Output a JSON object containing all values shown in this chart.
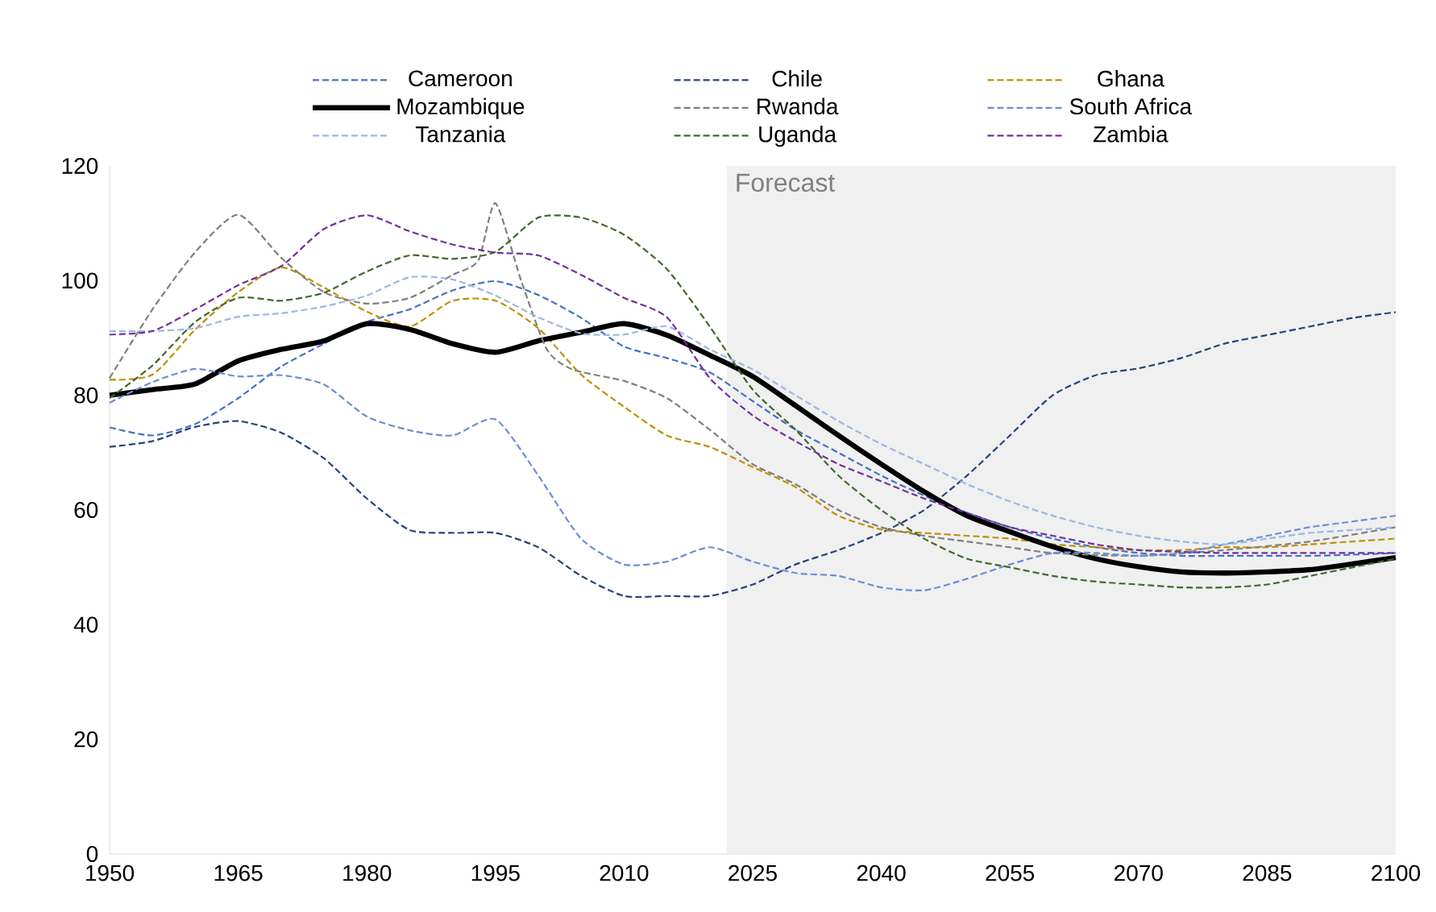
{
  "chart_data": {
    "type": "line",
    "x": [
      1950,
      1955,
      1960,
      1965,
      1970,
      1975,
      1980,
      1985,
      1990,
      1995,
      2000,
      2005,
      2010,
      2015,
      2020,
      2025,
      2030,
      2035,
      2040,
      2045,
      2050,
      2055,
      2060,
      2065,
      2070,
      2075,
      2080,
      2085,
      2090,
      2095,
      2100
    ],
    "series": [
      {
        "name": "Cameroon",
        "color": "#4472c4",
        "line_style": "dashed",
        "values": [
          74.4,
          73,
          75,
          79.5,
          85,
          89,
          92.8,
          95,
          98.3,
          99.9,
          97.5,
          93.5,
          88.5,
          86.5,
          84,
          79,
          74,
          70,
          66,
          62.5,
          59.5,
          57,
          55,
          53.5,
          52.5,
          52,
          52,
          52,
          52,
          52.2,
          52.5
        ]
      },
      {
        "name": "Chile",
        "color": "#264478",
        "line_style": "dashed",
        "values": [
          71,
          72,
          74.5,
          75.5,
          73.5,
          69,
          62,
          56.5,
          56,
          56,
          53.5,
          48.5,
          45,
          45,
          45,
          47,
          50.5,
          53,
          56,
          60,
          66,
          73,
          80,
          83.5,
          84.7,
          86.5,
          89,
          90.5,
          92,
          93.5,
          94.5
        ]
      },
      {
        "name": "Ghana",
        "color": "#bf9000",
        "line_style": "dashed",
        "values": [
          82.7,
          83.6,
          91.5,
          98,
          102.3,
          98.8,
          94.6,
          92,
          96.5,
          96.5,
          91.7,
          83.6,
          78,
          73,
          71,
          67.5,
          64,
          59,
          56.6,
          56,
          55.5,
          55,
          54,
          53.5,
          53,
          53,
          53.5,
          53.5,
          54,
          54.5,
          55
        ]
      },
      {
        "name": "Mozambique",
        "color": "#000000",
        "line_style": "solid",
        "values": [
          80,
          81,
          82,
          86,
          88,
          89.5,
          92.5,
          91.5,
          89,
          87.5,
          89.5,
          91,
          92.5,
          90.5,
          87,
          83.3,
          78.2,
          73,
          68,
          63.2,
          59,
          56.2,
          53.6,
          51.5,
          50.1,
          49.2,
          49,
          49.2,
          49.6,
          50.6,
          51.7
        ]
      },
      {
        "name": "Rwanda",
        "color": "#7f7f7f",
        "line_style": "dashed",
        "x": [
          1950,
          1955,
          1960,
          1965,
          1970,
          1975,
          1980,
          1985,
          1990,
          1993,
          1995,
          1998,
          2001,
          2004,
          2010,
          2015,
          2020,
          2025,
          2030,
          2035,
          2040,
          2045,
          2050,
          2055,
          2060,
          2070,
          2080,
          2090,
          2100
        ],
        "values": [
          83,
          95,
          105,
          111.5,
          104,
          98,
          96,
          97,
          101,
          103.5,
          113.5,
          100,
          88,
          84.5,
          82.5,
          79.5,
          74,
          68,
          64.5,
          60,
          57,
          55.5,
          54.5,
          53.5,
          52.5,
          52,
          53,
          54.5,
          57
        ]
      },
      {
        "name": "South Africa",
        "color": "#6a8fd4",
        "line_style": "dashed",
        "values": [
          78.7,
          82.3,
          84.6,
          83.3,
          83.5,
          81.9,
          76.3,
          73.9,
          73,
          75.8,
          66,
          55,
          50.5,
          51,
          53.5,
          51,
          49,
          48.5,
          46.5,
          46,
          48,
          50.5,
          52.5,
          52.5,
          52,
          52.5,
          54,
          55.5,
          57,
          58,
          59
        ]
      },
      {
        "name": "Tanzania",
        "color": "#9fb6e2",
        "line_style": "dashed",
        "values": [
          91.2,
          91.2,
          91.7,
          93.7,
          94.3,
          95.5,
          97.4,
          100.6,
          100.2,
          97.4,
          93.6,
          90.8,
          90.6,
          92,
          88,
          84.5,
          80,
          75.5,
          71.5,
          68,
          64.5,
          61.5,
          59,
          57,
          55.5,
          54.5,
          54,
          55,
          56,
          56.5,
          57
        ]
      },
      {
        "name": "Uganda",
        "color": "#43682b",
        "line_style": "dashed",
        "values": [
          79.5,
          85.2,
          92.8,
          97,
          96.5,
          97.9,
          101.6,
          104.4,
          103.8,
          105,
          111,
          111,
          108,
          102,
          92,
          81,
          74,
          66,
          60,
          55,
          51.5,
          50,
          48.5,
          47.5,
          47,
          46.5,
          46.5,
          47,
          48.5,
          50,
          51.5
        ]
      },
      {
        "name": "Zambia",
        "color": "#7030a0",
        "line_style": "dashed",
        "values": [
          90.6,
          91.2,
          95,
          99.2,
          102.5,
          109,
          111.4,
          108.6,
          106.3,
          104.9,
          104.4,
          101,
          97,
          93.6,
          83,
          76.5,
          72,
          68,
          65,
          62,
          59.5,
          57,
          55.5,
          54,
          53,
          52.7,
          52.5,
          52.5,
          52.5,
          52.5,
          52.5
        ]
      }
    ],
    "xlim": [
      1950,
      2100
    ],
    "ylim": [
      0,
      120
    ],
    "xticks": [
      1950,
      1965,
      1980,
      1995,
      2010,
      2025,
      2040,
      2055,
      2070,
      2085,
      2100
    ],
    "yticks": [
      0,
      20,
      40,
      60,
      80,
      100,
      120
    ],
    "bands": [
      {
        "axis": "x",
        "from": 2022,
        "to": 2100,
        "label": "Forecast",
        "color": "#f0f0f0"
      }
    ],
    "legend": "top"
  }
}
